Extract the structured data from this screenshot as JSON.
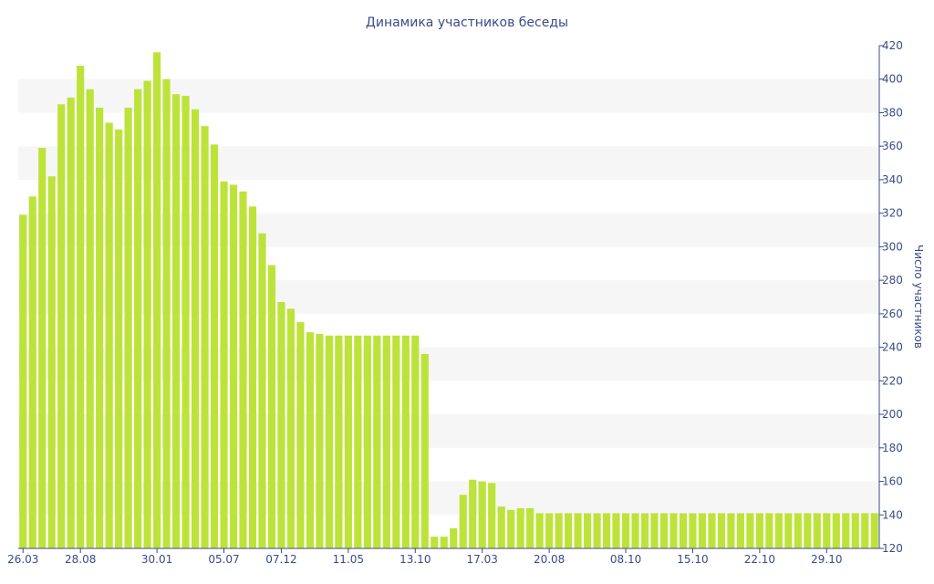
{
  "chart_data": {
    "type": "bar",
    "title": "Динамика участников беседы",
    "xlabel": "",
    "ylabel": "Число участников",
    "y_axis_side": "right",
    "ylim": [
      120,
      420
    ],
    "yticks": [
      120,
      140,
      160,
      180,
      200,
      220,
      240,
      260,
      280,
      300,
      320,
      340,
      360,
      380,
      400,
      420
    ],
    "grid": "alternating horizontal bands",
    "x_tick_labels": [
      {
        "label": "26.03",
        "index": 0
      },
      {
        "label": "28.08",
        "index": 6
      },
      {
        "label": "30.01",
        "index": 14
      },
      {
        "label": "05.07",
        "index": 21
      },
      {
        "label": "07.12",
        "index": 27
      },
      {
        "label": "11.05",
        "index": 34
      },
      {
        "label": "13.10",
        "index": 41
      },
      {
        "label": "17.03",
        "index": 48
      },
      {
        "label": "20.08",
        "index": 55
      },
      {
        "label": "08.10",
        "index": 63
      },
      {
        "label": "15.10",
        "index": 70
      },
      {
        "label": "22.10",
        "index": 77
      },
      {
        "label": "29.10",
        "index": 84
      }
    ],
    "colors": {
      "bar": "#bde33a",
      "band": "#f6f6f6",
      "axis": "#3a4b87",
      "text": "#3a4b87"
    },
    "values": [
      319,
      330,
      359,
      342,
      385,
      389,
      408,
      394,
      383,
      374,
      370,
      383,
      394,
      399,
      416,
      400,
      391,
      390,
      382,
      372,
      361,
      339,
      337,
      333,
      324,
      308,
      289,
      267,
      263,
      255,
      249,
      248,
      247,
      247,
      247,
      247,
      247,
      247,
      247,
      247,
      247,
      247,
      236,
      127,
      127,
      132,
      152,
      161,
      160,
      159,
      145,
      143,
      144,
      144,
      141,
      141,
      141,
      141,
      141,
      141,
      141,
      141,
      141,
      141,
      141,
      141,
      141,
      141,
      141,
      141,
      141,
      141,
      141,
      141,
      141,
      141,
      141,
      141,
      141,
      141,
      141,
      141,
      141,
      141,
      141,
      141,
      141,
      141,
      141,
      141
    ]
  }
}
